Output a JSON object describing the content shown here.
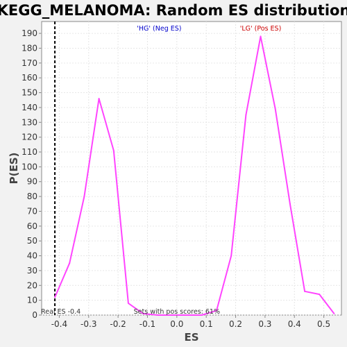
{
  "chart_data": {
    "type": "line",
    "title": "KEGG_MELANOMA: Random ES distribution",
    "xlabel": "ES",
    "ylabel": "P(ES)",
    "xlim": [
      -0.46,
      0.56
    ],
    "ylim": [
      0,
      198
    ],
    "x_ticks": [
      -0.4,
      -0.3,
      -0.2,
      -0.1,
      0.0,
      0.1,
      0.2,
      0.3,
      0.4,
      0.5
    ],
    "x_tick_labels": [
      "-0.4",
      "-0.3",
      "-0.2",
      "-0.1",
      "0.0",
      "0.1",
      "0.2",
      "0.3",
      "0.4",
      "0.5"
    ],
    "y_ticks": [
      0,
      10,
      20,
      30,
      40,
      50,
      60,
      70,
      80,
      90,
      100,
      110,
      120,
      130,
      140,
      150,
      160,
      170,
      180,
      190
    ],
    "grid": true,
    "line_color": "#ff44ff",
    "series": [
      {
        "x": [
          -0.415,
          -0.365,
          -0.315,
          -0.265,
          -0.215,
          -0.165,
          -0.115,
          -0.065,
          -0.015,
          0.035,
          0.085,
          0.135,
          0.185,
          0.235,
          0.285,
          0.335,
          0.385,
          0.435,
          0.485,
          0.535
        ],
        "values": [
          12,
          35,
          80,
          146,
          111,
          8,
          1,
          0,
          0,
          0,
          0,
          3,
          40,
          135,
          188,
          139,
          75,
          16,
          14,
          1
        ]
      }
    ],
    "reference_line": {
      "x": -0.415,
      "label": "Real ES -0.4",
      "color": "#000000",
      "style": "dashed"
    },
    "annotations": {
      "neg_label": "'HG' (Neg ES)",
      "neg_color": "#0000cc",
      "pos_label": "'LG' (Pos ES)",
      "pos_color": "#cc0000",
      "pos_scores": "Sets with pos scores: 61%"
    }
  }
}
